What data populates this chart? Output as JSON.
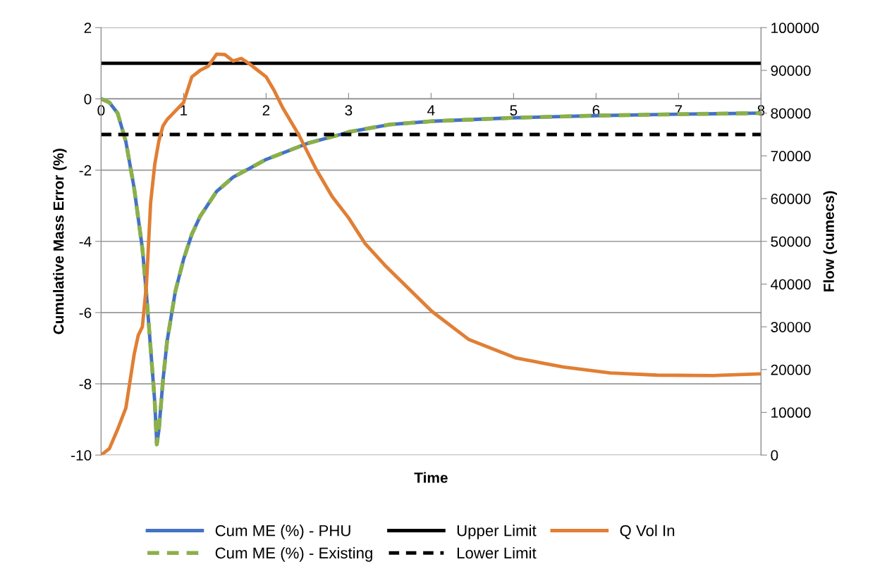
{
  "chart_data": {
    "type": "line",
    "xlabel": "Time",
    "ylabel": "Cumulative Mass Error (%)",
    "y2label": "Flow (cumecs)",
    "xlim": [
      0,
      8
    ],
    "xticks": [
      0,
      1,
      2,
      3,
      4,
      5,
      6,
      7,
      8
    ],
    "ylim": [
      -10,
      2
    ],
    "yticks": [
      -10,
      -8,
      -6,
      -4,
      -2,
      0,
      2
    ],
    "y2lim": [
      0,
      100000
    ],
    "y2ticks": [
      0,
      10000,
      20000,
      30000,
      40000,
      50000,
      60000,
      70000,
      80000,
      90000,
      100000
    ],
    "grid": "y",
    "legend": "bottom",
    "marker": "none",
    "series": [
      {
        "name": "Cum ME (%) - PHU",
        "color": "#4472c4",
        "line_style": "solid",
        "x": [
          0,
          0.1,
          0.2,
          0.3,
          0.4,
          0.5,
          0.55,
          0.6,
          0.65,
          0.675,
          0.7,
          0.75,
          0.8,
          0.9,
          1.0,
          1.1,
          1.2,
          1.4,
          1.6,
          1.8,
          2.0,
          2.5,
          2.9,
          3.0,
          3.5,
          4.0,
          5.0,
          6.0,
          7.0,
          8.0
        ],
        "values": [
          0,
          -0.1,
          -0.4,
          -1.2,
          -2.5,
          -4.2,
          -5.5,
          -7,
          -8.5,
          -9.7,
          -9.3,
          -7.9,
          -6.8,
          -5.4,
          -4.5,
          -3.8,
          -3.3,
          -2.6,
          -2.2,
          -1.95,
          -1.7,
          -1.25,
          -1.0,
          -0.93,
          -0.72,
          -0.63,
          -0.53,
          -0.47,
          -0.43,
          -0.4
        ]
      },
      {
        "name": "Cum ME (%) - Existing",
        "color": "#8cb04a",
        "line_style": "dashed",
        "x": [
          0,
          0.1,
          0.2,
          0.3,
          0.4,
          0.5,
          0.55,
          0.6,
          0.65,
          0.675,
          0.7,
          0.75,
          0.8,
          0.9,
          1.0,
          1.1,
          1.2,
          1.4,
          1.6,
          1.8,
          2.0,
          2.5,
          2.9,
          3.0,
          3.5,
          4.0,
          5.0,
          6.0,
          7.0,
          8.0
        ],
        "values": [
          0,
          -0.1,
          -0.4,
          -1.2,
          -2.5,
          -4.2,
          -5.5,
          -7,
          -8.5,
          -9.7,
          -9.3,
          -7.9,
          -6.8,
          -5.4,
          -4.5,
          -3.8,
          -3.3,
          -2.6,
          -2.2,
          -1.95,
          -1.7,
          -1.25,
          -1.0,
          -0.93,
          -0.72,
          -0.63,
          -0.53,
          -0.47,
          -0.43,
          -0.4
        ]
      },
      {
        "name": "Upper Limit",
        "color": "#000000",
        "line_style": "solid",
        "x": [
          0,
          8
        ],
        "values": [
          1,
          1
        ]
      },
      {
        "name": "Lower Limit",
        "color": "#000000",
        "line_style": "dashed",
        "x": [
          0,
          8
        ],
        "values": [
          -1,
          -1
        ]
      },
      {
        "name": "Q Vol In",
        "color": "#e07f35",
        "line_style": "solid",
        "axis": "y2",
        "x": [
          0,
          0.1,
          0.2,
          0.3,
          0.4,
          0.45,
          0.5,
          0.55,
          0.6,
          0.65,
          0.7,
          0.75,
          0.8,
          0.9,
          1.0,
          1.1,
          1.2,
          1.3,
          1.4,
          1.5,
          1.6,
          1.7,
          1.8,
          1.9,
          2.0,
          2.1,
          2.2,
          2.4,
          2.6,
          2.8,
          3.0,
          3.2,
          3.44,
          4.01,
          4.46,
          5.03,
          5.6,
          6.17,
          6.74,
          7.42,
          8.0
        ],
        "values": [
          0,
          1500,
          6000,
          11000,
          23500,
          28000,
          30000,
          40000,
          59000,
          68000,
          73500,
          77000,
          78500,
          80500,
          82500,
          88500,
          90000,
          91000,
          93800,
          93700,
          92200,
          92800,
          91500,
          90000,
          88500,
          85200,
          81300,
          74800,
          67100,
          60500,
          55500,
          49500,
          44400,
          33600,
          27000,
          22700,
          20600,
          19200,
          18700,
          18600,
          19000
        ]
      }
    ]
  }
}
